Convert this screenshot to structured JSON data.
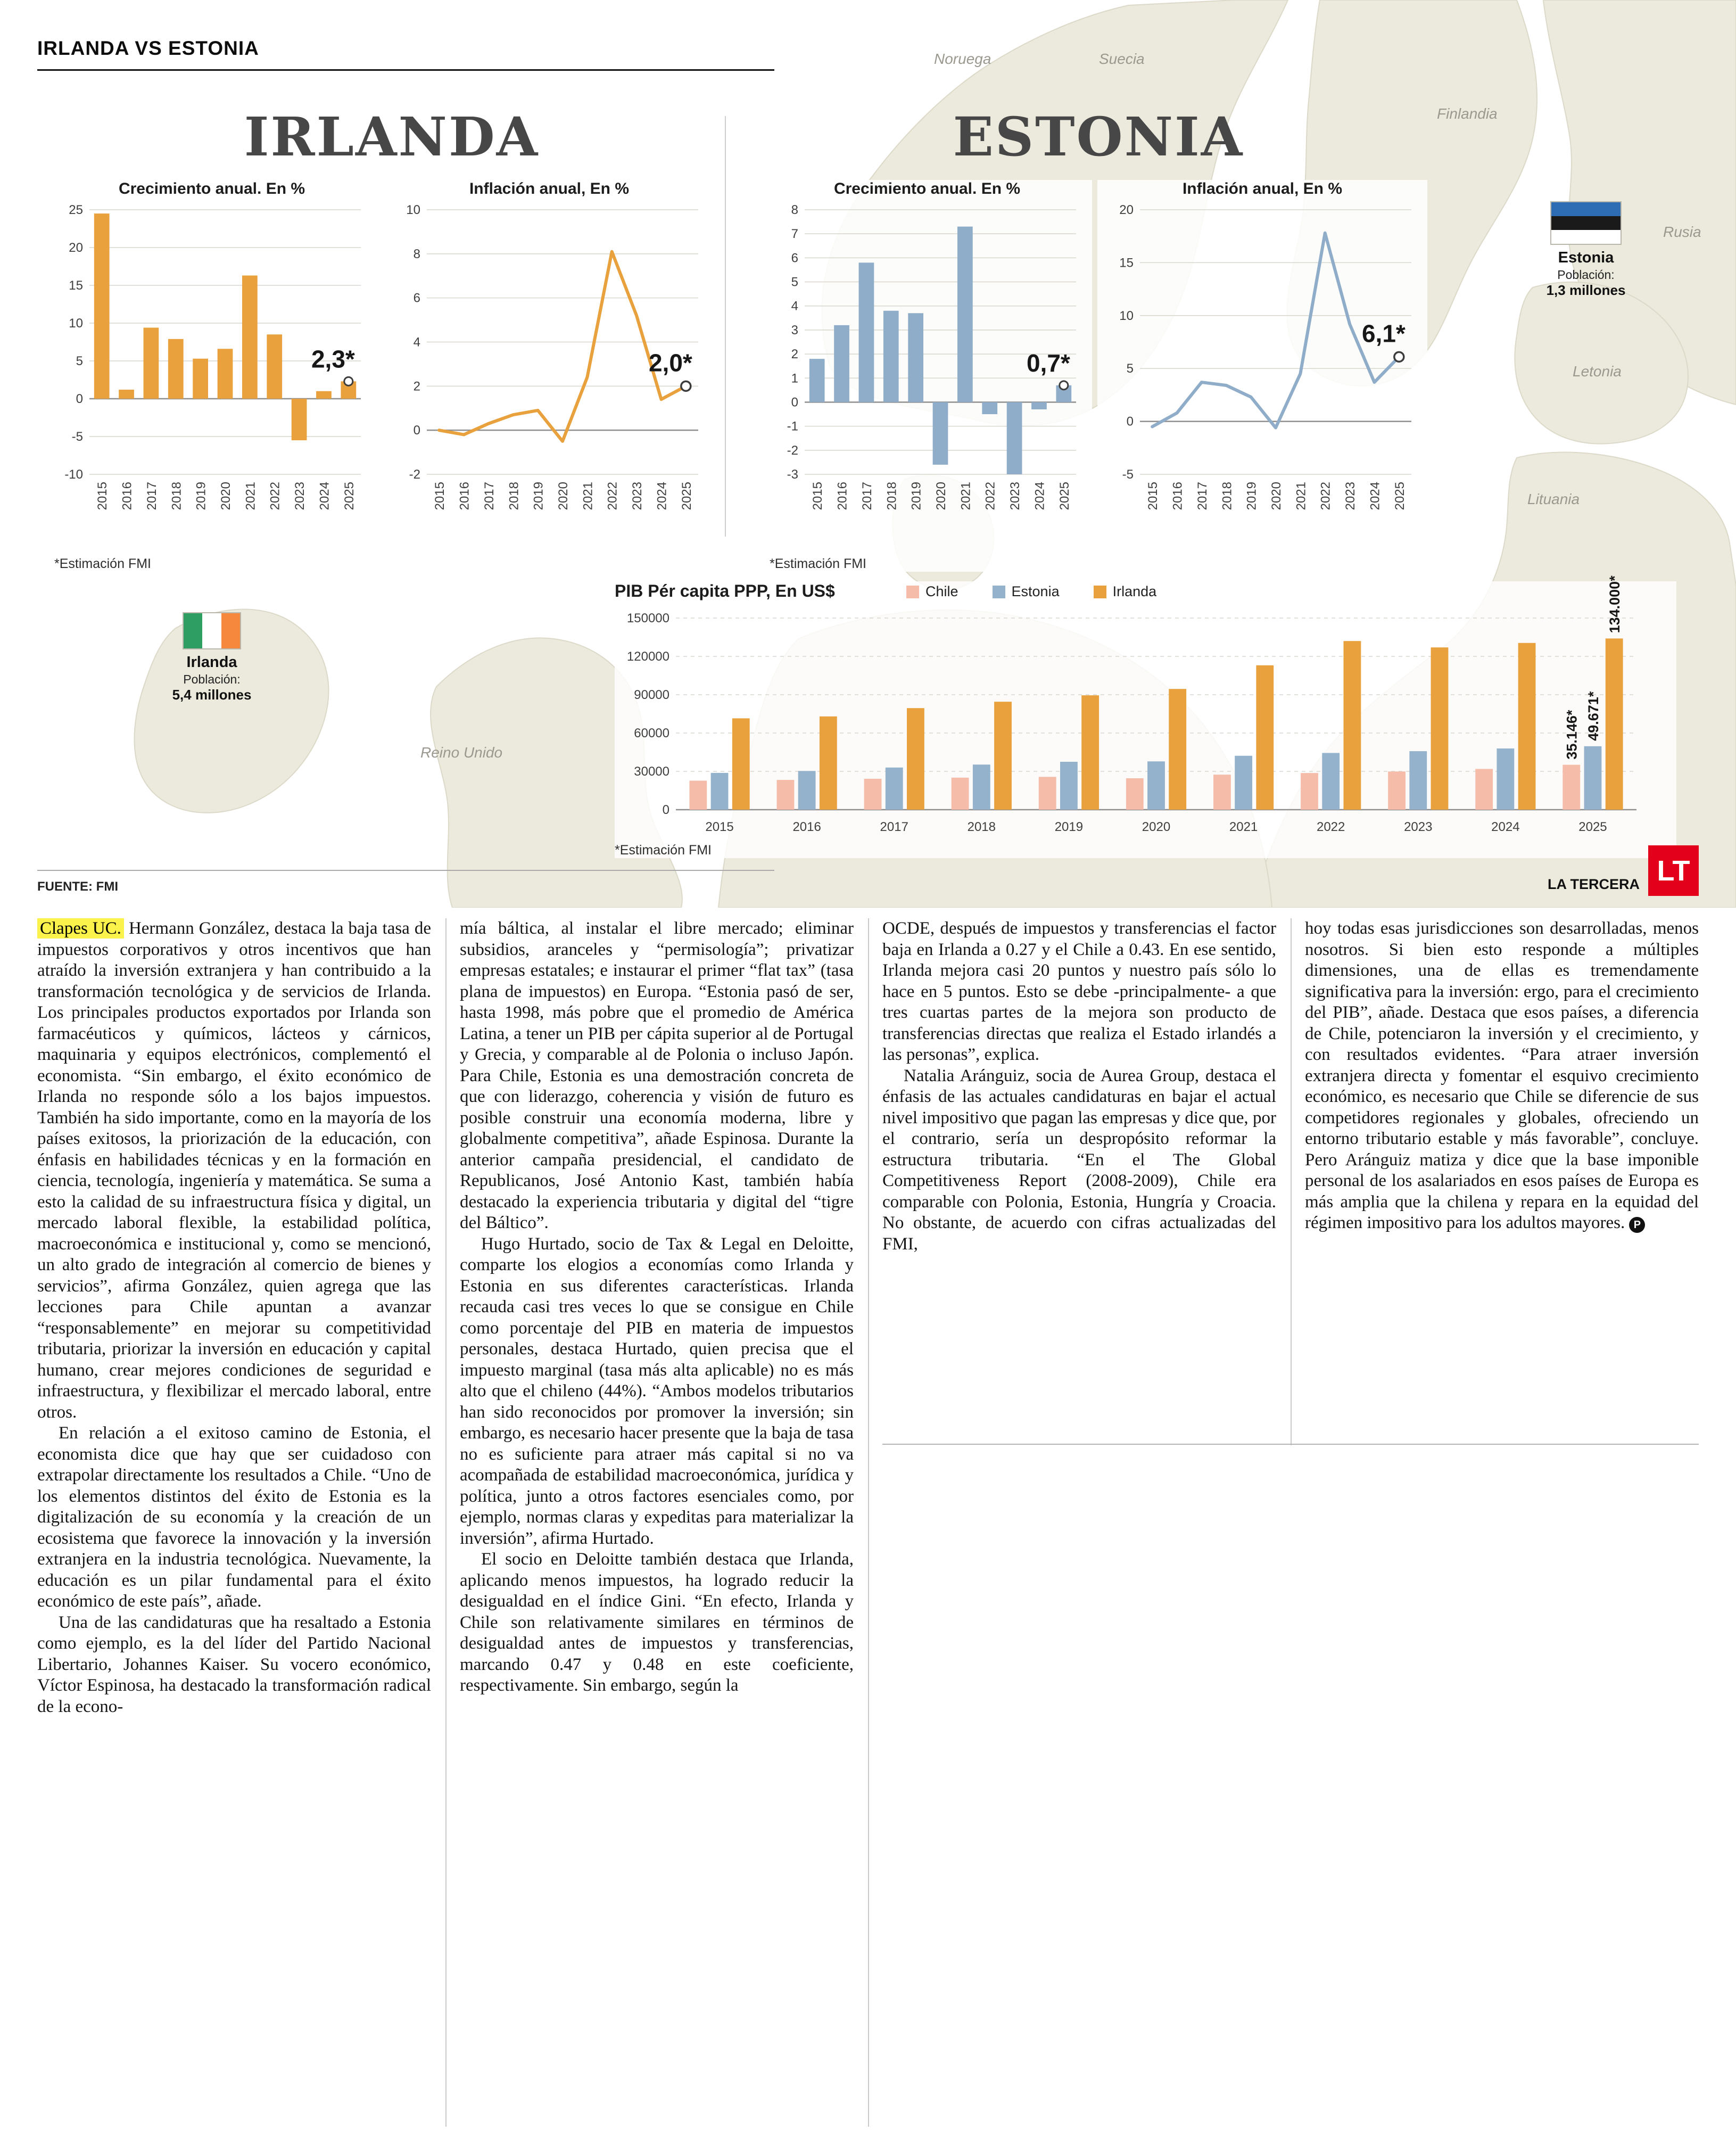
{
  "header": {
    "kicker": "IRLANDA VS ESTONIA"
  },
  "ireland": {
    "title": "IRLANDA",
    "flag_label": "Irlanda",
    "population_label": "Población:",
    "population_value": "5,4 millones"
  },
  "estonia": {
    "title": "ESTONIA",
    "flag_label": "Estonia",
    "population_label": "Población:",
    "population_value": "1,3 millones"
  },
  "map": {
    "labels": [
      "Noruega",
      "Suecia",
      "Finlandia",
      "Rusia",
      "Letonia",
      "Lituania",
      "Reino Unido"
    ]
  },
  "footer": {
    "source": "FUENTE: FMI",
    "brand": "LA TERCERA",
    "logo": "LT"
  },
  "chart_data": [
    {
      "id": "ireland_growth",
      "type": "bar",
      "title": "Crecimiento anual. En %",
      "note": "*Estimación FMI",
      "categories": [
        "2015",
        "2016",
        "2017",
        "2018",
        "2019",
        "2020",
        "2021",
        "2022",
        "2023",
        "2024",
        "2025"
      ],
      "values": [
        24.5,
        1.2,
        9.4,
        7.9,
        5.3,
        6.6,
        16.3,
        8.5,
        -5.5,
        1.0,
        2.3
      ],
      "ylim": [
        -10,
        25
      ],
      "yticks": [
        25,
        20,
        15,
        10,
        5,
        0,
        -5,
        -10
      ],
      "color": "#e8a13c",
      "annotation": "2,3*",
      "grid": "solid",
      "xlabels": "vertical"
    },
    {
      "id": "ireland_inflation",
      "type": "line",
      "title": "Inflación anual, En %",
      "categories": [
        "2015",
        "2016",
        "2017",
        "2018",
        "2019",
        "2020",
        "2021",
        "2022",
        "2023",
        "2024",
        "2025"
      ],
      "values": [
        0.0,
        -0.2,
        0.3,
        0.7,
        0.9,
        -0.5,
        2.4,
        8.1,
        5.2,
        1.4,
        2.0
      ],
      "ylim": [
        -2,
        10
      ],
      "yticks": [
        10,
        8,
        6,
        4,
        2,
        0,
        -2
      ],
      "color": "#e8a13c",
      "annotation": "2,0*",
      "grid": "solid",
      "xlabels": "vertical"
    },
    {
      "id": "estonia_growth",
      "type": "bar",
      "title": "Crecimiento anual. En %",
      "note": "*Estimación FMI",
      "categories": [
        "2015",
        "2016",
        "2017",
        "2018",
        "2019",
        "2020",
        "2021",
        "2022",
        "2023",
        "2024",
        "2025"
      ],
      "values": [
        1.8,
        3.2,
        5.8,
        3.8,
        3.7,
        -2.6,
        7.3,
        -0.5,
        -3.0,
        -0.3,
        0.7
      ],
      "ylim": [
        -3,
        8
      ],
      "yticks": [
        8,
        7,
        6,
        5,
        4,
        3,
        2,
        1,
        0,
        -1,
        -2,
        -3
      ],
      "color": "#8fadc9",
      "annotation": "0,7*",
      "grid": "solid",
      "xlabels": "vertical"
    },
    {
      "id": "estonia_inflation",
      "type": "line",
      "title": "Inflación anual, En %",
      "categories": [
        "2015",
        "2016",
        "2017",
        "2018",
        "2019",
        "2020",
        "2021",
        "2022",
        "2023",
        "2024",
        "2025"
      ],
      "values": [
        -0.5,
        0.8,
        3.7,
        3.4,
        2.3,
        -0.6,
        4.5,
        17.8,
        9.2,
        3.7,
        6.1
      ],
      "ylim": [
        -5,
        20
      ],
      "yticks": [
        20,
        15,
        10,
        5,
        0,
        -5
      ],
      "color": "#8fadc9",
      "annotation": "6,1*",
      "grid": "solid",
      "xlabels": "vertical"
    },
    {
      "id": "pib_per_capita",
      "type": "bar",
      "title": "PIB Pér capita PPP, En US$",
      "note": "*Estimación FMI",
      "categories": [
        "2015",
        "2016",
        "2017",
        "2018",
        "2019",
        "2020",
        "2021",
        "2022",
        "2023",
        "2024",
        "2025"
      ],
      "series": [
        {
          "name": "Chile",
          "color": "#f5bcaa",
          "annotation": "35.146*",
          "values": [
            22700,
            23300,
            24200,
            25100,
            25700,
            24600,
            27400,
            28700,
            29900,
            31900,
            35146
          ]
        },
        {
          "name": "Estonia",
          "color": "#94b2cb",
          "annotation": "49.671*",
          "values": [
            28800,
            30300,
            33000,
            35300,
            37500,
            37800,
            42200,
            44400,
            45800,
            47900,
            49671
          ]
        },
        {
          "name": "Irlanda",
          "color": "#e8a13c",
          "annotation": "134.000*",
          "values": [
            71500,
            73000,
            79500,
            84500,
            89500,
            94500,
            113000,
            132000,
            127000,
            130500,
            134000
          ]
        }
      ],
      "ylim": [
        0,
        150000
      ],
      "yticks": [
        150000,
        120000,
        90000,
        60000,
        30000,
        0
      ],
      "grid": "dashed",
      "xlabels": "horizontal",
      "legend_position": "top"
    }
  ],
  "article": {
    "columns": [
      {
        "paragraphs": [
          {
            "lead": "Clapes UC.",
            "text": "Hermann González, destaca la baja tasa de impuestos corporativos y otros incentivos que han atraído la inversión extranjera y han contribuido a la transformación tecnológica y de servicios de Irlanda. Los principales productos exportados por Irlanda son farmacéuticos y químicos, lácteos y cárnicos, maquinaria y equipos electrónicos, complementó el economista. “Sin embargo, el éxito económico de Irlanda no responde sólo a los bajos impuestos. También ha sido importante, como en la mayoría de los países exitosos, la priorización de la educación, con énfasis en habilidades técnicas y en la formación en ciencia, tecnología, ingeniería y matemática. Se suma a esto la calidad de su infraestructura física y digital, un mercado laboral flexible, la estabilidad política, macroeconómica e institucional y, como se mencionó, un alto grado de integración al comercio de bienes y servicios”, afirma González, quien agrega que las lecciones para Chile apuntan a avanzar “responsablemente” en mejorar su competitividad tributaria, priorizar la inversión en educación y capital humano, crear mejores condiciones de seguridad e infraestructura, y flexibilizar el mercado laboral, entre otros."
          },
          {
            "text": "En relación a el exitoso camino de Estonia, el economista dice que hay que ser cuidadoso con extrapolar directamente los resultados a Chile. “Uno de los elementos distintos del éxito de Estonia es la digitalización de su economía y la creación de un ecosistema que favorece la innovación y la inversión extranjera en la industria tecnológica. Nuevamente, la educación es un pilar fundamental para el éxito económico de este país”, añade."
          },
          {
            "text": "Una de las candidaturas que ha resaltado a Estonia como ejemplo, es la del líder del Partido Nacional Libertario, Johannes Kaiser. Su vocero económico, Víctor Espinosa, ha destacado la transformación radical de la econo-"
          }
        ]
      },
      {
        "paragraphs": [
          {
            "text": "mía báltica, al instalar el libre mercado; eliminar subsidios, aranceles y “permisología”; privatizar empresas estatales; e instaurar el primer “flat tax” (tasa plana de impuestos) en Europa. “Estonia pasó de ser, hasta 1998, más pobre que el promedio de América Latina, a tener un PIB per cápita superior al de Portugal y Grecia, y comparable al de Polonia o incluso Japón. Para Chile, Estonia es una demostración concreta de que con liderazgo, coherencia y visión de futuro es posible construir una economía moderna, libre y globalmente competitiva”, añade Espinosa. Durante la anterior campaña presidencial, el candidato de Republicanos, José Antonio Kast, también había destacado la experiencia tributaria y digital del “tigre del Báltico”."
          },
          {
            "text": "Hugo Hurtado, socio de Tax & Legal en Deloitte, comparte los elogios a economías como Irlanda y Estonia en sus diferentes características. Irlanda recauda casi tres veces lo que se consigue en Chile como porcentaje del PIB en materia de impuestos personales, destaca Hurtado, quien precisa que el impuesto marginal (tasa más alta aplicable) no es más alto que el chileno (44%). “Ambos modelos tributarios han sido reconocidos por promover la inversión; sin embargo, es necesario hacer presente que la baja de tasa no es suficiente para atraer más capital si no va acompañada de estabilidad macroeconómica, jurídica y política, junto a otros factores esenciales como, por ejemplo, normas claras y expeditas para materializar la inversión”, afirma Hurtado."
          },
          {
            "text": "El socio en Deloitte también destaca que Irlanda, aplicando menos impuestos, ha logrado reducir la desigualdad en el índice Gini. “En efecto, Irlanda y Chile son relativamente similares en términos de desigualdad antes de impuestos y transferencias, marcando 0.47 y 0.48 en este coeficiente, respectivamente. Sin embargo, según la"
          }
        ]
      },
      {
        "paragraphs": [
          {
            "text": "OCDE, después de impuestos y transferencias el factor baja en Irlanda a 0.27 y el Chile a 0.43. En ese sentido, Irlanda mejora casi 20 puntos y nuestro país sólo lo hace en 5 puntos. Esto se debe -principalmente- a que tres cuartas partes de la mejora son producto de transferencias directas que realiza el Estado irlandés a las personas”, explica."
          },
          {
            "text": "Natalia Aránguiz, socia de Aurea Group, destaca el énfasis de las actuales candidaturas en bajar el actual nivel impositivo que pagan las empresas y dice que, por el contrario, sería un despropósito reformar la estructura tributaria. “En el The Global Competitiveness Report (2008-2009), Chile era comparable con Polonia, Estonia, Hungría y Croacia. No obstante, de acuerdo con cifras actualizadas del FMI,"
          }
        ]
      },
      {
        "paragraphs": [
          {
            "text": "hoy todas esas jurisdicciones son desarrolladas, menos nosotros. Si bien esto responde a múltiples dimensiones, una de ellas es tremendamente significativa para la inversión: ergo, para el crecimiento del PIB”, añade. Destaca que esos países, a diferencia de Chile, potenciaron la inversión y el crecimiento, y con resultados evidentes. “Para atraer inversión extranjera directa y fomentar el esquivo crecimiento económico, es necesario que Chile se diferencie de sus competidores regionales y globales, ofreciendo un entorno tributario estable y más favorable”, concluye. Pero Aránguiz matiza y dice que la base imponible personal de los asalariados en esos países de Europa es más amplia que la chilena y repara en la equidad del régimen impositivo para los adultos mayores.",
            "endmark": "P"
          }
        ]
      }
    ]
  }
}
